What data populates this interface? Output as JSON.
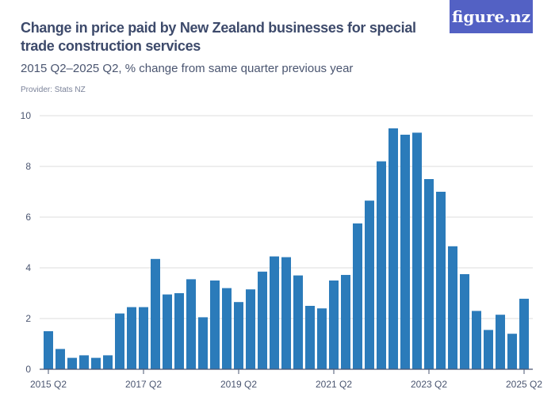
{
  "header": {
    "title": "Change in price paid by New Zealand businesses for special trade construction services",
    "subtitle": "2015 Q2–2025 Q2, % change from same quarter previous year",
    "provider": "Provider: Stats NZ",
    "logo": "figure.nz"
  },
  "colors": {
    "bar": "#2b7bba",
    "grid": "#dddddd",
    "logo_bg": "#5361c4"
  },
  "chart_data": {
    "type": "bar",
    "title": "Change in price paid by New Zealand businesses for special trade construction services",
    "subtitle": "2015 Q2–2025 Q2, % change from same quarter previous year",
    "xlabel": "",
    "ylabel": "",
    "ylim": [
      0,
      10
    ],
    "yticks": [
      0,
      2,
      4,
      6,
      8,
      10
    ],
    "xtick_labels": [
      "2015 Q2",
      "2017 Q2",
      "2019 Q2",
      "2021 Q2",
      "2023 Q2",
      "2025 Q2"
    ],
    "grid": true,
    "categories": [
      "2015 Q2",
      "2015 Q3",
      "2015 Q4",
      "2016 Q1",
      "2016 Q2",
      "2016 Q3",
      "2016 Q4",
      "2017 Q1",
      "2017 Q2",
      "2017 Q3",
      "2017 Q4",
      "2018 Q1",
      "2018 Q2",
      "2018 Q3",
      "2018 Q4",
      "2019 Q1",
      "2019 Q2",
      "2019 Q3",
      "2019 Q4",
      "2020 Q1",
      "2020 Q2",
      "2020 Q3",
      "2020 Q4",
      "2021 Q1",
      "2021 Q2",
      "2021 Q3",
      "2021 Q4",
      "2022 Q1",
      "2022 Q2",
      "2022 Q3",
      "2022 Q4",
      "2023 Q1",
      "2023 Q2",
      "2023 Q3",
      "2023 Q4",
      "2024 Q1",
      "2024 Q2",
      "2024 Q3",
      "2024 Q4",
      "2025 Q1",
      "2025 Q2"
    ],
    "values": [
      1.5,
      0.8,
      0.45,
      0.55,
      0.45,
      0.55,
      2.2,
      2.45,
      2.45,
      4.35,
      2.95,
      3.0,
      3.55,
      2.05,
      3.5,
      3.2,
      2.65,
      3.15,
      3.85,
      4.45,
      4.42,
      3.7,
      2.5,
      2.4,
      3.5,
      3.72,
      5.75,
      6.65,
      8.2,
      9.5,
      9.25,
      9.33,
      7.5,
      7.0,
      4.85,
      3.75,
      2.3,
      1.55,
      2.15,
      1.4,
      2.78
    ]
  }
}
